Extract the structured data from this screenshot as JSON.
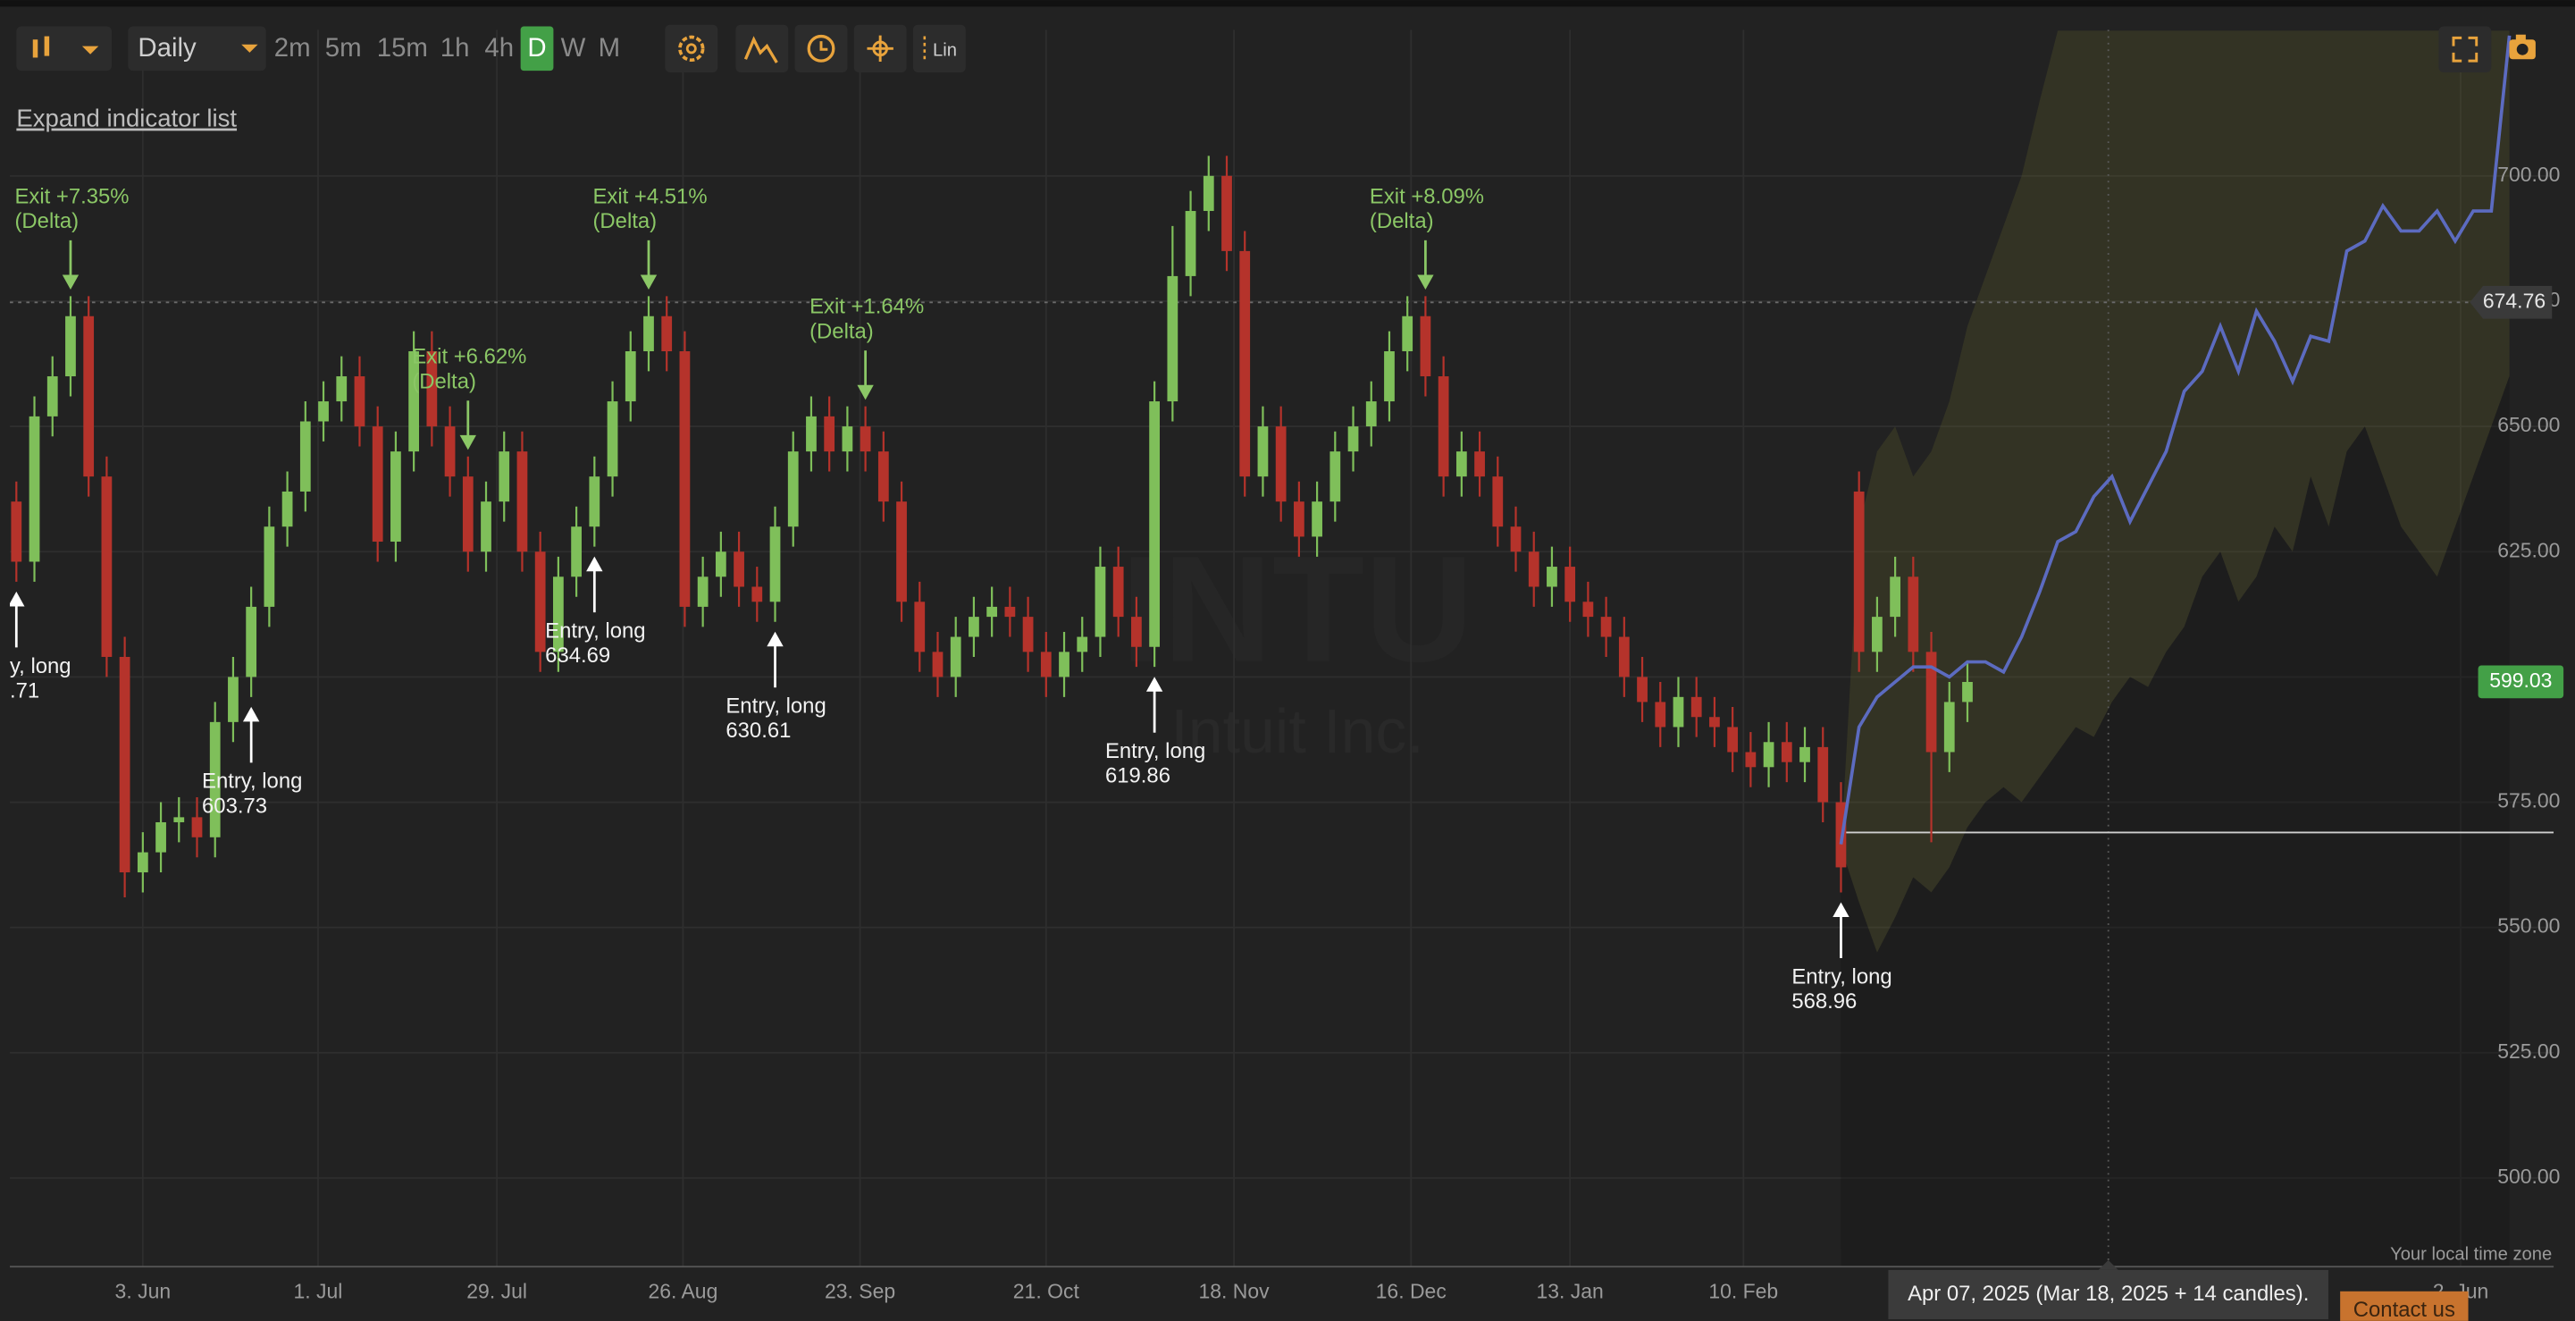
{
  "toolbar": {
    "interval": "Daily",
    "timeframes": [
      "2m",
      "5m",
      "15m",
      "1h",
      "4h",
      "D",
      "W",
      "M"
    ],
    "active": 5,
    "scale_button": "Lin"
  },
  "expand_link": "Expand indicator list",
  "timezone_note": "Your local time zone",
  "contact": "Contact us",
  "chart_data": {
    "type": "candlestick",
    "watermark": {
      "symbol": "INTU",
      "name": "Intuit Inc."
    },
    "grid": true,
    "up_color": "#7fbf5a",
    "down_color": "#b5332b",
    "xlim": [
      -0.36,
      140.45
    ],
    "ylim": [
      482.3,
      729.18
    ],
    "yticks": [
      {
        "value": 500,
        "label": "500.00"
      },
      {
        "value": 525,
        "label": "525.00"
      },
      {
        "value": 550,
        "label": "550.00"
      },
      {
        "value": 575,
        "label": "575.00"
      },
      {
        "value": 600,
        "label": "600.00"
      },
      {
        "value": 625,
        "label": "625.00"
      },
      {
        "value": 650,
        "label": "650.00"
      },
      {
        "value": 675,
        "label": "675.00"
      },
      {
        "value": 700,
        "label": "700.00"
      }
    ],
    "xticks": [
      {
        "value": 7,
        "label": "3. Jun"
      },
      {
        "value": 16.7,
        "label": "1. Jul"
      },
      {
        "value": 26.6,
        "label": "29. Jul"
      },
      {
        "value": 36.9,
        "label": "26. Aug"
      },
      {
        "value": 46.7,
        "label": "23. Sep"
      },
      {
        "value": 57,
        "label": "21. Oct"
      },
      {
        "value": 67.4,
        "label": "18. Nov"
      },
      {
        "value": 77.2,
        "label": "16. Dec"
      },
      {
        "value": 86,
        "label": "13. Jan"
      },
      {
        "value": 95.6,
        "label": "10. Feb"
      },
      {
        "value": 135.3,
        "label": "2. Jun"
      }
    ],
    "candles": {
      "x": [
        0,
        1,
        2,
        3,
        4,
        5,
        6,
        7,
        8,
        9,
        10,
        11,
        12,
        13,
        14,
        15,
        16,
        17,
        18,
        19,
        20,
        21,
        22,
        23,
        24,
        25,
        26,
        27,
        28,
        29,
        30,
        31,
        32,
        33,
        34,
        35,
        36,
        37,
        38,
        39,
        40,
        41,
        42,
        43,
        44,
        45,
        46,
        47,
        48,
        49,
        50,
        51,
        52,
        53,
        54,
        55,
        56,
        57,
        58,
        59,
        60,
        61,
        62,
        63,
        64,
        65,
        66,
        67,
        68,
        69,
        70,
        71,
        72,
        73,
        74,
        75,
        76,
        77,
        78,
        79,
        80,
        81,
        82,
        83,
        84,
        85,
        86,
        87,
        88,
        89,
        90,
        91,
        92,
        93,
        94,
        95,
        96,
        97,
        98,
        99,
        100,
        101,
        102,
        103,
        104,
        105,
        106,
        107,
        108
      ],
      "open": [
        635,
        623,
        652,
        660,
        672,
        640,
        604,
        561,
        565,
        571,
        572,
        568,
        591,
        600,
        614,
        630,
        637,
        651,
        655,
        660,
        650,
        627,
        645,
        665,
        650,
        640,
        625,
        635,
        645,
        625,
        605,
        620,
        630,
        640,
        655,
        665,
        672,
        665,
        614,
        620,
        625,
        618,
        615,
        630,
        645,
        652,
        645,
        650,
        645,
        635,
        615,
        605,
        600,
        608,
        612,
        614,
        612,
        605,
        600,
        605,
        608,
        622,
        612,
        606,
        655,
        680,
        693,
        700,
        685,
        640,
        650,
        635,
        628,
        635,
        645,
        650,
        655,
        665,
        672,
        660,
        640,
        645,
        640,
        630,
        625,
        618,
        622,
        615,
        612,
        608,
        600,
        595,
        590,
        596,
        592,
        590,
        585,
        582,
        587,
        583,
        586,
        575,
        637,
        605,
        612,
        620,
        605,
        585,
        595
      ],
      "high": [
        639,
        656,
        664,
        676,
        676,
        644,
        608,
        569,
        575,
        576,
        576,
        595,
        604,
        618,
        634,
        641,
        655,
        659,
        664,
        664,
        654,
        649,
        669,
        669,
        654,
        644,
        639,
        649,
        649,
        629,
        624,
        634,
        644,
        659,
        669,
        676,
        676,
        669,
        624,
        629,
        629,
        622,
        634,
        649,
        656,
        656,
        654,
        654,
        649,
        639,
        619,
        609,
        612,
        616,
        618,
        618,
        616,
        609,
        609,
        612,
        626,
        626,
        616,
        659,
        690,
        697,
        704,
        704,
        689,
        654,
        654,
        639,
        639,
        649,
        654,
        659,
        669,
        676,
        676,
        664,
        649,
        649,
        644,
        634,
        629,
        626,
        626,
        619,
        616,
        612,
        604,
        599,
        600,
        600,
        596,
        594,
        589,
        591,
        591,
        590,
        590,
        579,
        641,
        616,
        624,
        624,
        609,
        599,
        603
      ],
      "low": [
        619,
        619,
        648,
        656,
        636,
        600,
        556,
        557,
        561,
        567,
        564,
        564,
        587,
        596,
        610,
        626,
        633,
        647,
        651,
        646,
        623,
        623,
        641,
        646,
        636,
        621,
        621,
        631,
        621,
        601,
        601,
        616,
        626,
        636,
        651,
        661,
        661,
        610,
        610,
        616,
        614,
        611,
        611,
        626,
        641,
        641,
        641,
        641,
        631,
        611,
        601,
        596,
        596,
        604,
        608,
        608,
        601,
        596,
        596,
        601,
        604,
        608,
        602,
        602,
        651,
        676,
        689,
        681,
        636,
        636,
        631,
        624,
        624,
        631,
        641,
        646,
        651,
        661,
        656,
        636,
        636,
        636,
        626,
        621,
        614,
        614,
        611,
        608,
        604,
        596,
        591,
        586,
        586,
        588,
        586,
        581,
        578,
        578,
        579,
        579,
        571,
        557,
        601,
        601,
        608,
        601,
        567,
        581,
        591
      ],
      "close": [
        623,
        652,
        660,
        672,
        640,
        604,
        561,
        565,
        571,
        572,
        568,
        591,
        600,
        614,
        630,
        637,
        651,
        655,
        660,
        650,
        627,
        645,
        665,
        650,
        640,
        625,
        635,
        645,
        625,
        605,
        620,
        630,
        640,
        655,
        665,
        672,
        665,
        614,
        620,
        625,
        618,
        615,
        630,
        645,
        652,
        645,
        650,
        645,
        635,
        615,
        605,
        600,
        608,
        612,
        614,
        612,
        605,
        600,
        605,
        608,
        622,
        612,
        606,
        655,
        680,
        693,
        700,
        685,
        640,
        650,
        635,
        628,
        635,
        645,
        650,
        655,
        665,
        672,
        660,
        640,
        645,
        640,
        630,
        625,
        618,
        622,
        615,
        612,
        608,
        600,
        595,
        590,
        596,
        592,
        590,
        585,
        582,
        587,
        583,
        586,
        575,
        562,
        605,
        612,
        620,
        605,
        585,
        595,
        599
      ]
    },
    "entries": [
      {
        "x": 0,
        "label": "y, long",
        "price": ".71"
      },
      {
        "x": 13,
        "label": "Entry, long",
        "price": 603.73
      },
      {
        "x": 32,
        "label": "Entry, long",
        "price": 634.69
      },
      {
        "x": 42,
        "label": "Entry, long",
        "price": 630.61
      },
      {
        "x": 63,
        "label": "Entry, long",
        "price": 619.86
      },
      {
        "x": 101,
        "label": "Entry, long",
        "price": 568.96
      }
    ],
    "exits": [
      {
        "x": 3,
        "label": "Exit +7.35%",
        "note": "(Delta)"
      },
      {
        "x": 25,
        "label": "Exit +6.62%",
        "note": "(Delta)"
      },
      {
        "x": 35,
        "label": "Exit +4.51%",
        "note": "(Delta)"
      },
      {
        "x": 47,
        "label": "Exit +1.64%",
        "note": "(Delta)"
      },
      {
        "x": 78,
        "label": "Exit +8.09%",
        "note": "(Delta)"
      }
    ],
    "last_price": {
      "value": 674.76,
      "color": "#3a3a3a"
    },
    "current_price": {
      "value": 599.03,
      "color": "#43a047"
    },
    "forecast": {
      "color": "#5c6bc0",
      "x": [
        101,
        102,
        103,
        104,
        105,
        106,
        107,
        108,
        109,
        110,
        111,
        112,
        113,
        114,
        115,
        116,
        117,
        118,
        119,
        120,
        121,
        122,
        123,
        124,
        125,
        126,
        127,
        128,
        129,
        130,
        131,
        132,
        133,
        134,
        135,
        136,
        137,
        138
      ],
      "values": [
        566.6,
        590,
        596,
        599,
        602,
        602,
        600,
        603,
        603,
        601,
        608,
        617,
        627,
        629,
        636,
        640,
        631,
        638,
        645,
        657,
        661,
        670,
        661,
        673,
        667,
        659,
        668,
        667,
        685,
        687,
        694,
        689,
        689,
        693,
        687,
        693,
        693,
        728
      ],
      "upper": [
        566,
        630,
        645,
        650,
        640,
        645,
        655,
        670,
        680,
        690,
        700,
        715,
        729,
        729,
        729,
        729,
        729,
        729,
        729,
        729,
        729,
        729,
        729,
        729,
        729,
        729,
        729,
        729,
        729,
        729,
        729,
        729,
        729,
        729,
        729,
        729,
        729,
        729
      ],
      "lower": [
        566,
        555,
        545,
        552,
        560,
        557,
        562,
        570,
        575,
        578,
        575,
        580,
        585,
        590,
        588,
        595,
        600,
        598,
        605,
        610,
        620,
        625,
        615,
        620,
        630,
        625,
        640,
        630,
        645,
        650,
        640,
        630,
        625,
        620,
        630,
        640,
        650,
        660
      ]
    },
    "cursor": {
      "x": 115.8,
      "label": "Apr 07, 2025 (Mar 18, 2025 + 14 candles)."
    }
  }
}
